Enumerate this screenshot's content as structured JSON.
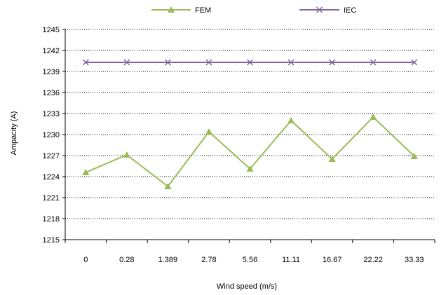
{
  "chart_data": {
    "type": "line",
    "xlabel": "Wind speed (m/s)",
    "ylabel": "Ampacity (A)",
    "categories": [
      "0",
      "0.28",
      "1.389",
      "2.78",
      "5.56",
      "11.11",
      "16.67",
      "22.22",
      "33.33"
    ],
    "ylim": [
      1215,
      1245
    ],
    "yticks": [
      1215,
      1218,
      1221,
      1224,
      1227,
      1230,
      1233,
      1236,
      1239,
      1242,
      1245
    ],
    "grid": "horizontal dotted",
    "legend_position": "top",
    "series": [
      {
        "name": "FEM",
        "color": "#9BBB59",
        "marker": "triangle",
        "values": [
          1224.6,
          1227.1,
          1222.6,
          1230.4,
          1225.1,
          1232.0,
          1226.5,
          1232.5,
          1226.9
        ]
      },
      {
        "name": "IEC",
        "color": "#8064A2",
        "marker": "x",
        "values": [
          1240.3,
          1240.3,
          1240.3,
          1240.3,
          1240.3,
          1240.3,
          1240.3,
          1240.3,
          1240.3
        ]
      }
    ]
  }
}
